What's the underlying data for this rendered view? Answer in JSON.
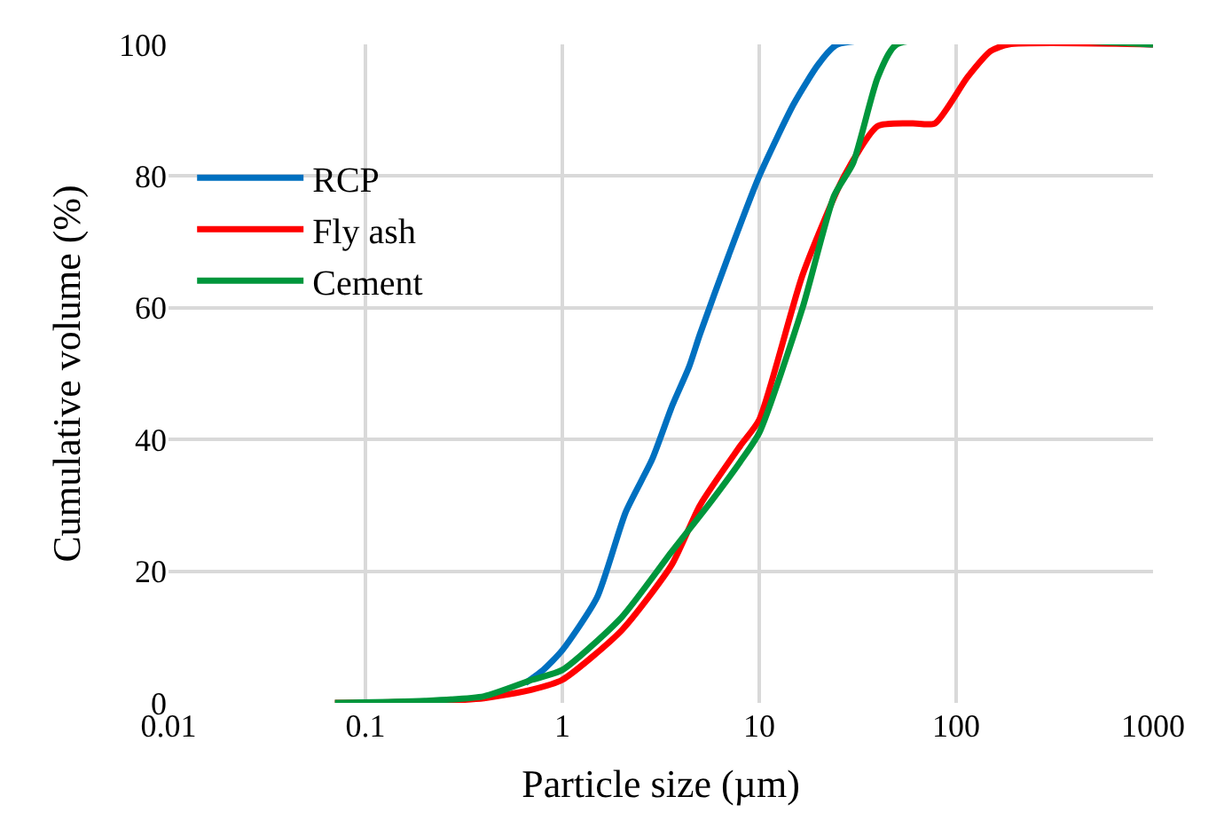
{
  "chart_data": {
    "type": "line",
    "xlabel": "Particle size (µm)",
    "ylabel": "Cumulative volume (%)",
    "log": "x",
    "grid": true,
    "legend": "top left",
    "marker": "none",
    "line_style": "solid",
    "xlim": [
      0.01,
      1000
    ],
    "xticks": [
      0.01,
      0.1,
      1,
      10,
      100,
      1000
    ],
    "ylim": [
      0,
      100
    ],
    "yticks": [
      0,
      20,
      40,
      60,
      80,
      100
    ],
    "series": [
      {
        "name": "RCP",
        "color": "#0070c0",
        "x": [
          0.65,
          0.8,
          1,
          1.5,
          2.1,
          2.86,
          3.6,
          4.4,
          5,
          7,
          10,
          15,
          20,
          25,
          1000
        ],
        "values": [
          3,
          5,
          8,
          16,
          29,
          37,
          45,
          51,
          56,
          68,
          80,
          91,
          97,
          100,
          100
        ]
      },
      {
        "name": "Fly ash",
        "color": "#ff0000",
        "x": [
          0.07,
          0.2,
          0.4,
          0.7,
          1,
          2,
          3.6,
          5,
          8,
          10,
          16.6,
          27,
          40,
          60,
          78,
          114,
          150,
          185,
          1000
        ],
        "values": [
          0,
          0.2,
          0.7,
          2,
          3.5,
          11,
          21,
          30,
          39,
          43,
          65,
          80,
          87.6,
          88,
          88,
          95,
          99,
          100,
          100
        ]
      },
      {
        "name": "Cement",
        "color": "#00963c",
        "x": [
          0.07,
          0.2,
          0.4,
          0.7,
          1,
          2,
          3.6,
          5.5,
          8,
          10,
          16.6,
          24,
          30,
          40,
          50,
          1000
        ],
        "values": [
          0,
          0.3,
          1,
          3.5,
          5,
          13,
          23,
          30,
          36.6,
          41,
          60,
          77,
          82,
          95,
          100,
          100
        ]
      }
    ]
  }
}
